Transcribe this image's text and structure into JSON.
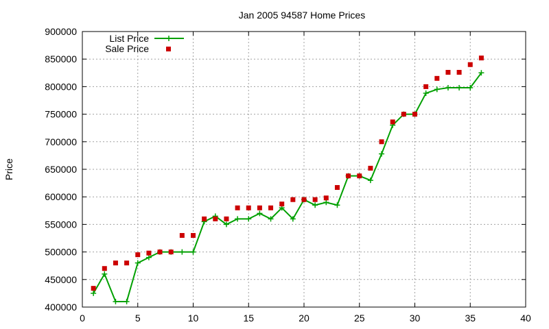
{
  "chart_data": {
    "type": "line",
    "title": "Jan 2005 94587 Home Prices",
    "xlabel": "",
    "ylabel": "Price",
    "xlim": [
      0,
      40
    ],
    "ylim": [
      400000,
      900000
    ],
    "x_ticks": [
      0,
      5,
      10,
      15,
      20,
      25,
      30,
      35,
      40
    ],
    "y_ticks": [
      400000,
      450000,
      500000,
      550000,
      600000,
      650000,
      700000,
      750000,
      800000,
      850000,
      900000
    ],
    "grid": true,
    "legend_position": "top-left",
    "x": [
      1,
      2,
      3,
      4,
      5,
      6,
      7,
      8,
      9,
      10,
      11,
      12,
      13,
      14,
      15,
      16,
      17,
      18,
      19,
      20,
      21,
      22,
      23,
      24,
      25,
      26,
      27,
      28,
      29,
      30,
      31,
      32,
      33,
      34,
      35,
      36
    ],
    "series": [
      {
        "name": "List Price",
        "style": "linespoints",
        "marker": "plus",
        "color": "#00a000",
        "values": [
          425000,
          460000,
          410000,
          410000,
          480000,
          490000,
          500000,
          500000,
          500000,
          500000,
          555000,
          565000,
          550000,
          560000,
          560000,
          570000,
          560000,
          580000,
          560000,
          595000,
          585000,
          590000,
          585000,
          638000,
          638000,
          630000,
          678000,
          730000,
          750000,
          750000,
          788000,
          795000,
          798000,
          798000,
          798000,
          825000
        ]
      },
      {
        "name": "Sale Price",
        "style": "points",
        "marker": "square",
        "color": "#cc0000",
        "values": [
          434000,
          470000,
          480000,
          480000,
          495000,
          498000,
          500000,
          500000,
          530000,
          530000,
          560000,
          560000,
          560000,
          580000,
          580000,
          580000,
          580000,
          587000,
          595000,
          595000,
          595000,
          598000,
          617000,
          638000,
          638000,
          652000,
          700000,
          736000,
          750000,
          750000,
          800000,
          815000,
          826000,
          826000,
          840000,
          852000
        ]
      }
    ]
  }
}
